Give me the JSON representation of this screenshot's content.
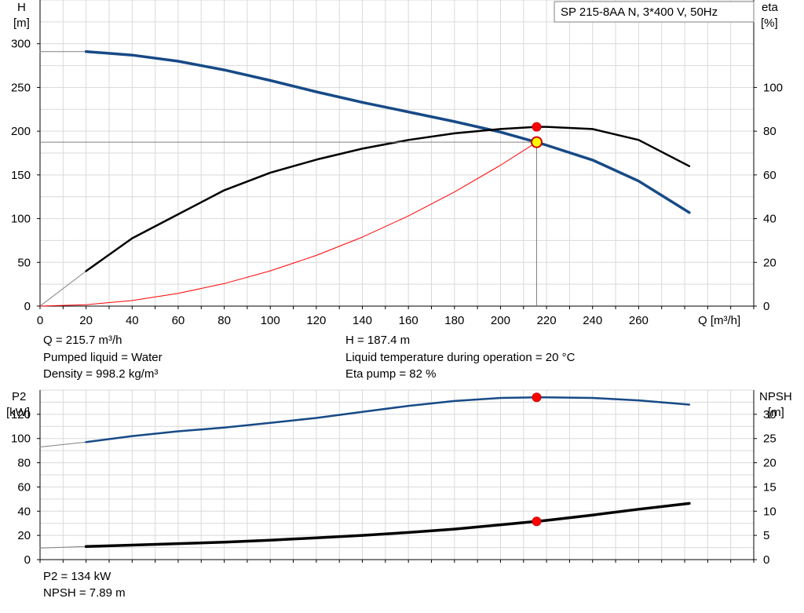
{
  "title_box": "SP 215-8AA N, 3*400 V, 50Hz",
  "top_chart": {
    "left_axis": {
      "label_line1": "H",
      "label_line2": "[m]",
      "min": 0,
      "max": 350,
      "ticks": [
        0,
        50,
        100,
        150,
        200,
        250,
        300
      ]
    },
    "right_axis": {
      "label_line1": "eta",
      "label_line2": "[%]",
      "min": 0,
      "max": 140,
      "ticks": [
        0,
        20,
        40,
        60,
        80,
        100
      ]
    },
    "x_axis": {
      "label": "Q [m³/h]",
      "min": 0,
      "max": 310,
      "ticks": [
        0,
        20,
        40,
        60,
        80,
        100,
        120,
        140,
        160,
        180,
        200,
        220,
        240,
        260
      ]
    }
  },
  "bottom_chart": {
    "left_axis": {
      "label_line1": "P2",
      "label_line2": "[kW]",
      "min": 0,
      "max": 140,
      "ticks": [
        0,
        20,
        40,
        60,
        80,
        100,
        120
      ]
    },
    "right_axis": {
      "label_line1": "NPSH",
      "label_line2": "[m]",
      "min": 0,
      "max": 35,
      "ticks": [
        0,
        5,
        10,
        15,
        20,
        25,
        30
      ]
    }
  },
  "chart_data": [
    {
      "type": "line",
      "title": "SP 215-8AA N, 3*400 V, 50Hz",
      "xlabel": "Q [m³/h]",
      "ylabel": "H [m]",
      "y2label": "eta [%]",
      "xlim": [
        0,
        310
      ],
      "ylim": [
        0,
        350
      ],
      "y2lim": [
        0,
        140
      ],
      "grid": true,
      "series": [
        {
          "axis": "left",
          "color": "#174a86",
          "x": [
            0,
            20
          ],
          "y": [
            291,
            291
          ]
        },
        {
          "axis": "left",
          "color": "#174a86",
          "x": [
            20,
            40,
            60,
            80,
            100,
            120,
            140,
            160,
            180,
            200,
            215.7,
            220,
            240,
            260,
            282
          ],
          "y": [
            291,
            287,
            280,
            270,
            258,
            245,
            233,
            222,
            211,
            199,
            187.4,
            184,
            167,
            143,
            107
          ]
        },
        {
          "axis": "right",
          "color": "#000000",
          "x": [
            0,
            20
          ],
          "y": [
            0,
            16
          ]
        },
        {
          "axis": "right",
          "color": "#000000",
          "x": [
            20,
            40,
            60,
            80,
            100,
            120,
            140,
            160,
            180,
            200,
            215.7,
            220,
            240,
            260,
            282
          ],
          "y": [
            16,
            31,
            42,
            53,
            61,
            67,
            72,
            76,
            79,
            81,
            82,
            82,
            81,
            76,
            64
          ]
        },
        {
          "axis": "left",
          "color": "#ff0000",
          "x": [
            0,
            20,
            40,
            60,
            80,
            100,
            120,
            140,
            160,
            180,
            200,
            215.7
          ],
          "y": [
            0,
            1.6,
            6.4,
            14.5,
            25.8,
            40.3,
            58.0,
            78.9,
            103.1,
            130.5,
            161.1,
            187.4
          ]
        }
      ],
      "operating_point": {
        "x": 215.7,
        "h": 187.4,
        "eta": 82
      }
    },
    {
      "type": "line",
      "ylabel": "P2 [kW]",
      "y2label": "NPSH [m]",
      "xlim": [
        0,
        310
      ],
      "ylim": [
        0,
        140
      ],
      "y2lim": [
        0,
        35
      ],
      "grid": true,
      "series": [
        {
          "axis": "left",
          "color": "#174a86",
          "x": [
            0,
            20
          ],
          "y": [
            93,
            97
          ]
        },
        {
          "axis": "left",
          "color": "#174a86",
          "x": [
            20,
            40,
            60,
            80,
            100,
            120,
            140,
            160,
            180,
            200,
            215.7,
            220,
            240,
            260,
            282
          ],
          "y": [
            97,
            102,
            106,
            109,
            113,
            117,
            122,
            127,
            131,
            133.5,
            134,
            134,
            133.5,
            131.5,
            128
          ]
        },
        {
          "axis": "right",
          "color": "#000000",
          "x": [
            0,
            20
          ],
          "y": [
            2.4,
            2.7
          ]
        },
        {
          "axis": "right",
          "color": "#000000",
          "x": [
            20,
            40,
            60,
            80,
            100,
            120,
            140,
            160,
            180,
            200,
            215.7,
            220,
            240,
            260,
            282
          ],
          "y": [
            2.7,
            3.0,
            3.3,
            3.6,
            4.0,
            4.5,
            5.0,
            5.6,
            6.3,
            7.2,
            7.89,
            8.1,
            9.2,
            10.4,
            11.6
          ]
        }
      ],
      "operating_point": {
        "x": 215.7,
        "p2": 134,
        "npsh": 7.89
      }
    }
  ],
  "info_top": {
    "q": "Q = 215.7 m³/h",
    "h": "H = 187.4 m",
    "liquid": "Pumped liquid = Water",
    "temp": "Liquid temperature during operation = 20 °C",
    "density": "Density = 998.2 kg/m³",
    "eta": "Eta pump = 82 %"
  },
  "info_bottom": {
    "p2": "P2 = 134 kW",
    "npsh": "NPSH = 7.89 m"
  }
}
